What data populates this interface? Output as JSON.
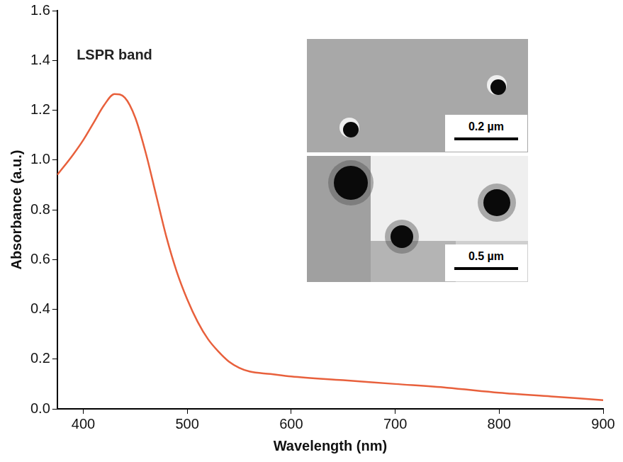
{
  "chart_data": {
    "type": "line",
    "x_label": "Wavelength (nm)",
    "y_label": "Absorbance (a.u.)",
    "x": [
      375,
      390,
      400,
      410,
      420,
      430,
      440,
      450,
      460,
      470,
      480,
      490,
      500,
      510,
      520,
      530,
      540,
      550,
      560,
      580,
      600,
      650,
      700,
      750,
      800,
      850,
      900
    ],
    "values": [
      0.94,
      1.02,
      1.08,
      1.15,
      1.22,
      1.265,
      1.25,
      1.17,
      1.03,
      0.86,
      0.69,
      0.55,
      0.44,
      0.35,
      0.28,
      0.23,
      0.19,
      0.165,
      0.15,
      0.14,
      0.13,
      0.115,
      0.1,
      0.085,
      0.065,
      0.05,
      0.035
    ],
    "color": "#e8603c",
    "xlim": [
      375,
      900
    ],
    "xticks": [
      400,
      500,
      600,
      700,
      800,
      900
    ],
    "ylim": [
      0,
      1.6
    ],
    "yticks": [
      {
        "value": 0,
        "label": "0.0"
      },
      0.2,
      0.4,
      0.6,
      0.8,
      {
        "value": 1,
        "label": "1.0"
      },
      1.2,
      1.4,
      1.6
    ],
    "grid": false,
    "annotations": [
      {
        "text": "LSPR band",
        "x": 430,
        "y": 1.42
      }
    ],
    "insets": [
      {
        "scale_bar_label": "0.2 µm"
      },
      {
        "scale_bar_label": "0.5 µm"
      }
    ]
  }
}
